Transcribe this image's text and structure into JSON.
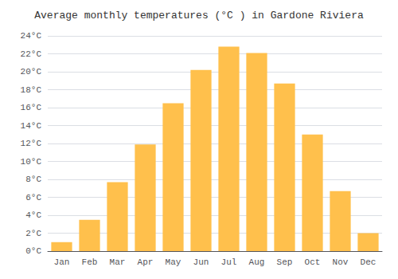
{
  "chart_data": {
    "type": "bar",
    "title": "Average monthly temperatures (°C ) in Gardone Riviera",
    "categories": [
      "Jan",
      "Feb",
      "Mar",
      "Apr",
      "May",
      "Jun",
      "Jul",
      "Aug",
      "Sep",
      "Oct",
      "Nov",
      "Dec"
    ],
    "values": [
      1,
      3.5,
      7.7,
      11.9,
      16.5,
      20.2,
      22.8,
      22.1,
      18.7,
      13.0,
      6.7,
      2.0
    ],
    "color": "#FFC04C",
    "ylim": [
      0,
      24
    ],
    "yticks": [
      {
        "value": 0,
        "label": "0°C"
      },
      {
        "value": 2,
        "label": "2°C"
      },
      {
        "value": 4,
        "label": "4°C"
      },
      {
        "value": 6,
        "label": "6°C"
      },
      {
        "value": 8,
        "label": "8°C"
      },
      {
        "value": 10,
        "label": "10°C"
      },
      {
        "value": 12,
        "label": "12°C"
      },
      {
        "value": 14,
        "label": "14°C"
      },
      {
        "value": 16,
        "label": "16°C"
      },
      {
        "value": 18,
        "label": "18°C"
      },
      {
        "value": 20,
        "label": "20°C"
      },
      {
        "value": 22,
        "label": "22°C"
      },
      {
        "value": 24,
        "label": "24°C"
      }
    ],
    "grid": true
  }
}
